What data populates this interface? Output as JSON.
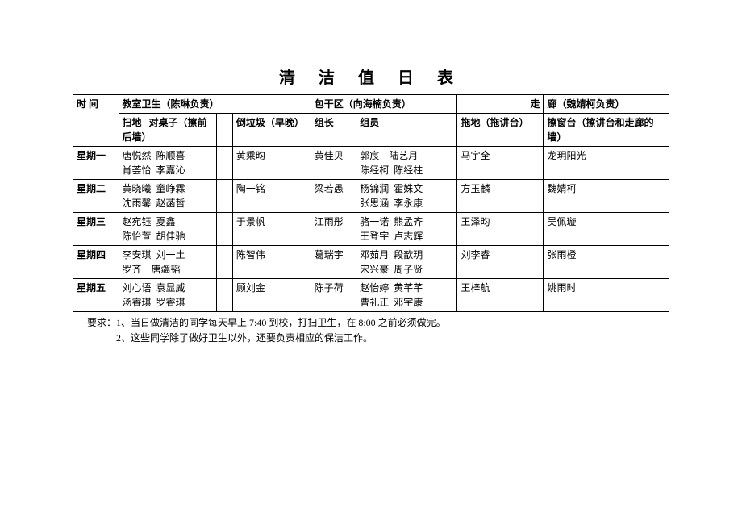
{
  "title": "清 洁 值 日 表",
  "headers": {
    "time": "时 间",
    "classroom": "教室卫生（陈琳负责）",
    "zone": "包干区（向海楠负责）",
    "corridor_left": "走",
    "corridor_right": "廊（魏婧柯负责）",
    "sweep": "扫地",
    "desk": "对桌子（擦前后墙）",
    "trash": "倒垃圾（早晚）",
    "leader": "组长",
    "members": "组员",
    "mop": "拖地（拖讲台）",
    "window": "擦窗台（擦讲台和走廊的墙）"
  },
  "rows": [
    {
      "day": "星期一",
      "sweep": "唐悦然  陈顺喜\n肖荟怡  李嘉沁",
      "desk": "",
      "trash": "黄乘昀",
      "leader": "黄佳贝",
      "members": "郭宸    陆艺月\n陈经柯  陈经柱",
      "mop": "马宇全",
      "window": "龙玥阳光"
    },
    {
      "day": "星期二",
      "sweep": "黄晓曦  童峥霖\n沈雨馨  赵菡哲",
      "desk": "",
      "trash": "陶一铭",
      "leader": "梁若愚",
      "members": "杨锦润  霍姝文\n张思涵  李永康",
      "mop": "方玉麟",
      "window": "魏婧柯"
    },
    {
      "day": "星期三",
      "sweep": "赵宛钰  夏鑫\n陈怡萱  胡佳驰",
      "desk": "",
      "trash": "于景帆",
      "leader": "江雨彤",
      "members": "骆一诺  熊孟齐\n王登宇  卢志辉",
      "mop": "王泽昀",
      "window": "吴佩璇"
    },
    {
      "day": "星期四",
      "sweep": "李安琪  刘一土\n罗齐    唐疆韬",
      "desk": "",
      "trash": "陈智伟",
      "leader": "葛瑞宇",
      "members": "邓茹月  段歆玥\n宋兴豪  周子贤",
      "mop": "刘李睿",
      "window": "张雨橙"
    },
    {
      "day": "星期五",
      "sweep": "刘心语  袁显威\n汤睿琪  罗睿琪",
      "desk": "",
      "trash": "顾刘金",
      "leader": "陈子荷",
      "members": "赵怡婷  黄芊芊\n曹礼正  邓宇康",
      "mop": "王梓航",
      "window": "姚雨时"
    }
  ],
  "notes": {
    "line1": "要求：1、当日做清洁的同学每天早上 7:40 到校，打扫卫生，在 8:00 之前必须做完。",
    "line2": "2、这些同学除了做好卫生以外，还要负责相应的保洁工作。"
  },
  "colwidths": {
    "time": "56px",
    "sweep": "120px",
    "desk": "20px",
    "trash": "96px",
    "leader": "56px",
    "members": "124px",
    "mop": "106px",
    "window": "154px"
  }
}
